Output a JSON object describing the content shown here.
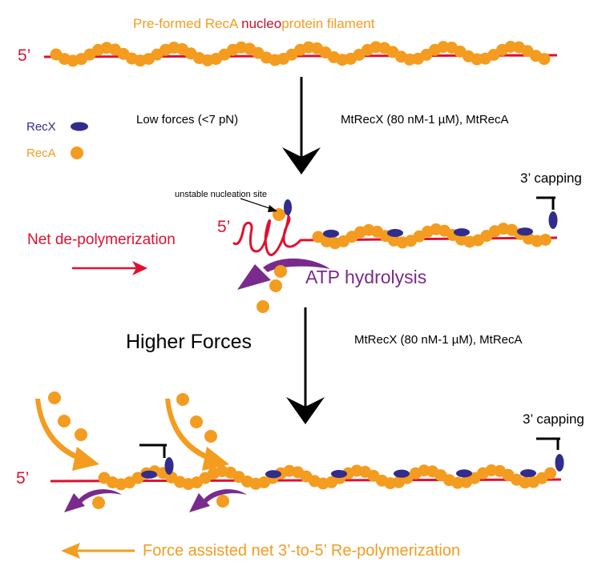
{
  "title": {
    "part1": "Pre-formed RecA ",
    "part2": "nucleo",
    "part3": "protein filament"
  },
  "labels": {
    "five_prime": "5’",
    "recx": "RecX",
    "reca": "RecA",
    "low_forces": "Low forces (<7 pN)",
    "condition_top": "MtRecX (80 nM-1 µM), MtRecA",
    "condition_bottom": "MtRecX (80 nM-1 µM), MtRecA",
    "capping_top": "3’ capping",
    "capping_bottom": "3’ capping",
    "unstable_site": "unstable nucleation site",
    "net_depoly": "Net de-polymerization",
    "atp": "ATP hydrolysis",
    "higher_forces": "Higher Forces",
    "repoly": "Force assisted net 3’-to-5’ Re-polymerization"
  },
  "colors": {
    "reca": "#f39c1f",
    "recx": "#322c8c",
    "dna": "#e0102f",
    "atp_arrow": "#7a2a8c",
    "black": "#000000"
  }
}
